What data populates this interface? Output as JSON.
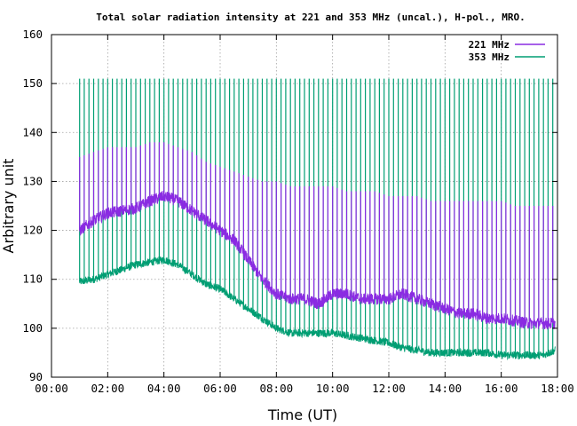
{
  "chart_data": {
    "type": "line",
    "title": "Total solar radiation intensity at 221 and 353 MHz (uncal.), H-pol., MRO.",
    "xlabel": "Time (UT)",
    "ylabel": "Arbitrary unit",
    "xlim": [
      "00:00",
      "18:00"
    ],
    "ylim": [
      90,
      160
    ],
    "x_ticks": [
      "00:00",
      "02:00",
      "04:00",
      "06:00",
      "08:00",
      "10:00",
      "12:00",
      "14:00",
      "16:00",
      "18:00"
    ],
    "y_ticks": [
      "90",
      "100",
      "110",
      "120",
      "130",
      "140",
      "150",
      "160"
    ],
    "grid": true,
    "legend_position": "top-right",
    "calibration_interval_minutes": 10,
    "series": [
      {
        "name": "221 MHz",
        "color": "#8a2be2",
        "x": [
          "01:00",
          "01:30",
          "02:00",
          "02:30",
          "03:00",
          "03:30",
          "04:00",
          "04:30",
          "05:00",
          "05:30",
          "06:00",
          "06:30",
          "07:00",
          "07:30",
          "08:00",
          "08:30",
          "09:00",
          "09:30",
          "10:00",
          "10:30",
          "11:00",
          "11:30",
          "12:00",
          "12:30",
          "13:00",
          "13:30",
          "14:00",
          "14:30",
          "15:00",
          "15:30",
          "16:00",
          "16:30",
          "17:00",
          "17:30",
          "17:55"
        ],
        "values": [
          120,
          122,
          123.5,
          124,
          124.5,
          126,
          127,
          126,
          124,
          122,
          120,
          118,
          114,
          110,
          107,
          106,
          106,
          105,
          107,
          107,
          106,
          106,
          106,
          107,
          106,
          105,
          104,
          103,
          103,
          102,
          102,
          101.5,
          101,
          101,
          101
        ],
        "calibration_peak": [
          135,
          136,
          137,
          137,
          137,
          138,
          138,
          137,
          136,
          134,
          133,
          132,
          131,
          130,
          130,
          129,
          129,
          129,
          129,
          128,
          128,
          128,
          127,
          127,
          127,
          126,
          126,
          126,
          126,
          126,
          126,
          125,
          125,
          125,
          125
        ]
      },
      {
        "name": "353 MHz",
        "color": "#009e73",
        "x": [
          "01:00",
          "01:30",
          "02:00",
          "02:30",
          "03:00",
          "03:30",
          "04:00",
          "04:30",
          "05:00",
          "05:30",
          "06:00",
          "06:30",
          "07:00",
          "07:30",
          "08:00",
          "08:30",
          "09:00",
          "09:30",
          "10:00",
          "10:30",
          "11:00",
          "11:30",
          "12:00",
          "12:30",
          "13:00",
          "13:30",
          "14:00",
          "14:30",
          "15:00",
          "15:30",
          "16:00",
          "16:30",
          "17:00",
          "17:30",
          "17:55"
        ],
        "values": [
          109.5,
          110,
          111,
          112,
          113,
          113.5,
          114,
          113,
          111,
          109,
          108,
          106,
          104,
          102,
          100,
          99,
          99,
          99,
          99,
          98.5,
          98,
          97.5,
          97,
          96,
          95.5,
          95,
          95,
          95,
          95,
          95,
          94.5,
          94.5,
          94.5,
          94.5,
          95.5
        ],
        "calibration_peak": [
          151,
          151,
          151,
          151,
          151,
          151,
          151,
          151,
          151,
          151,
          151,
          151,
          151,
          151,
          151,
          151,
          151,
          151,
          151,
          151,
          151,
          151,
          151,
          151,
          151,
          151,
          151,
          151,
          151,
          151,
          151,
          151,
          151,
          151,
          151
        ]
      }
    ]
  }
}
